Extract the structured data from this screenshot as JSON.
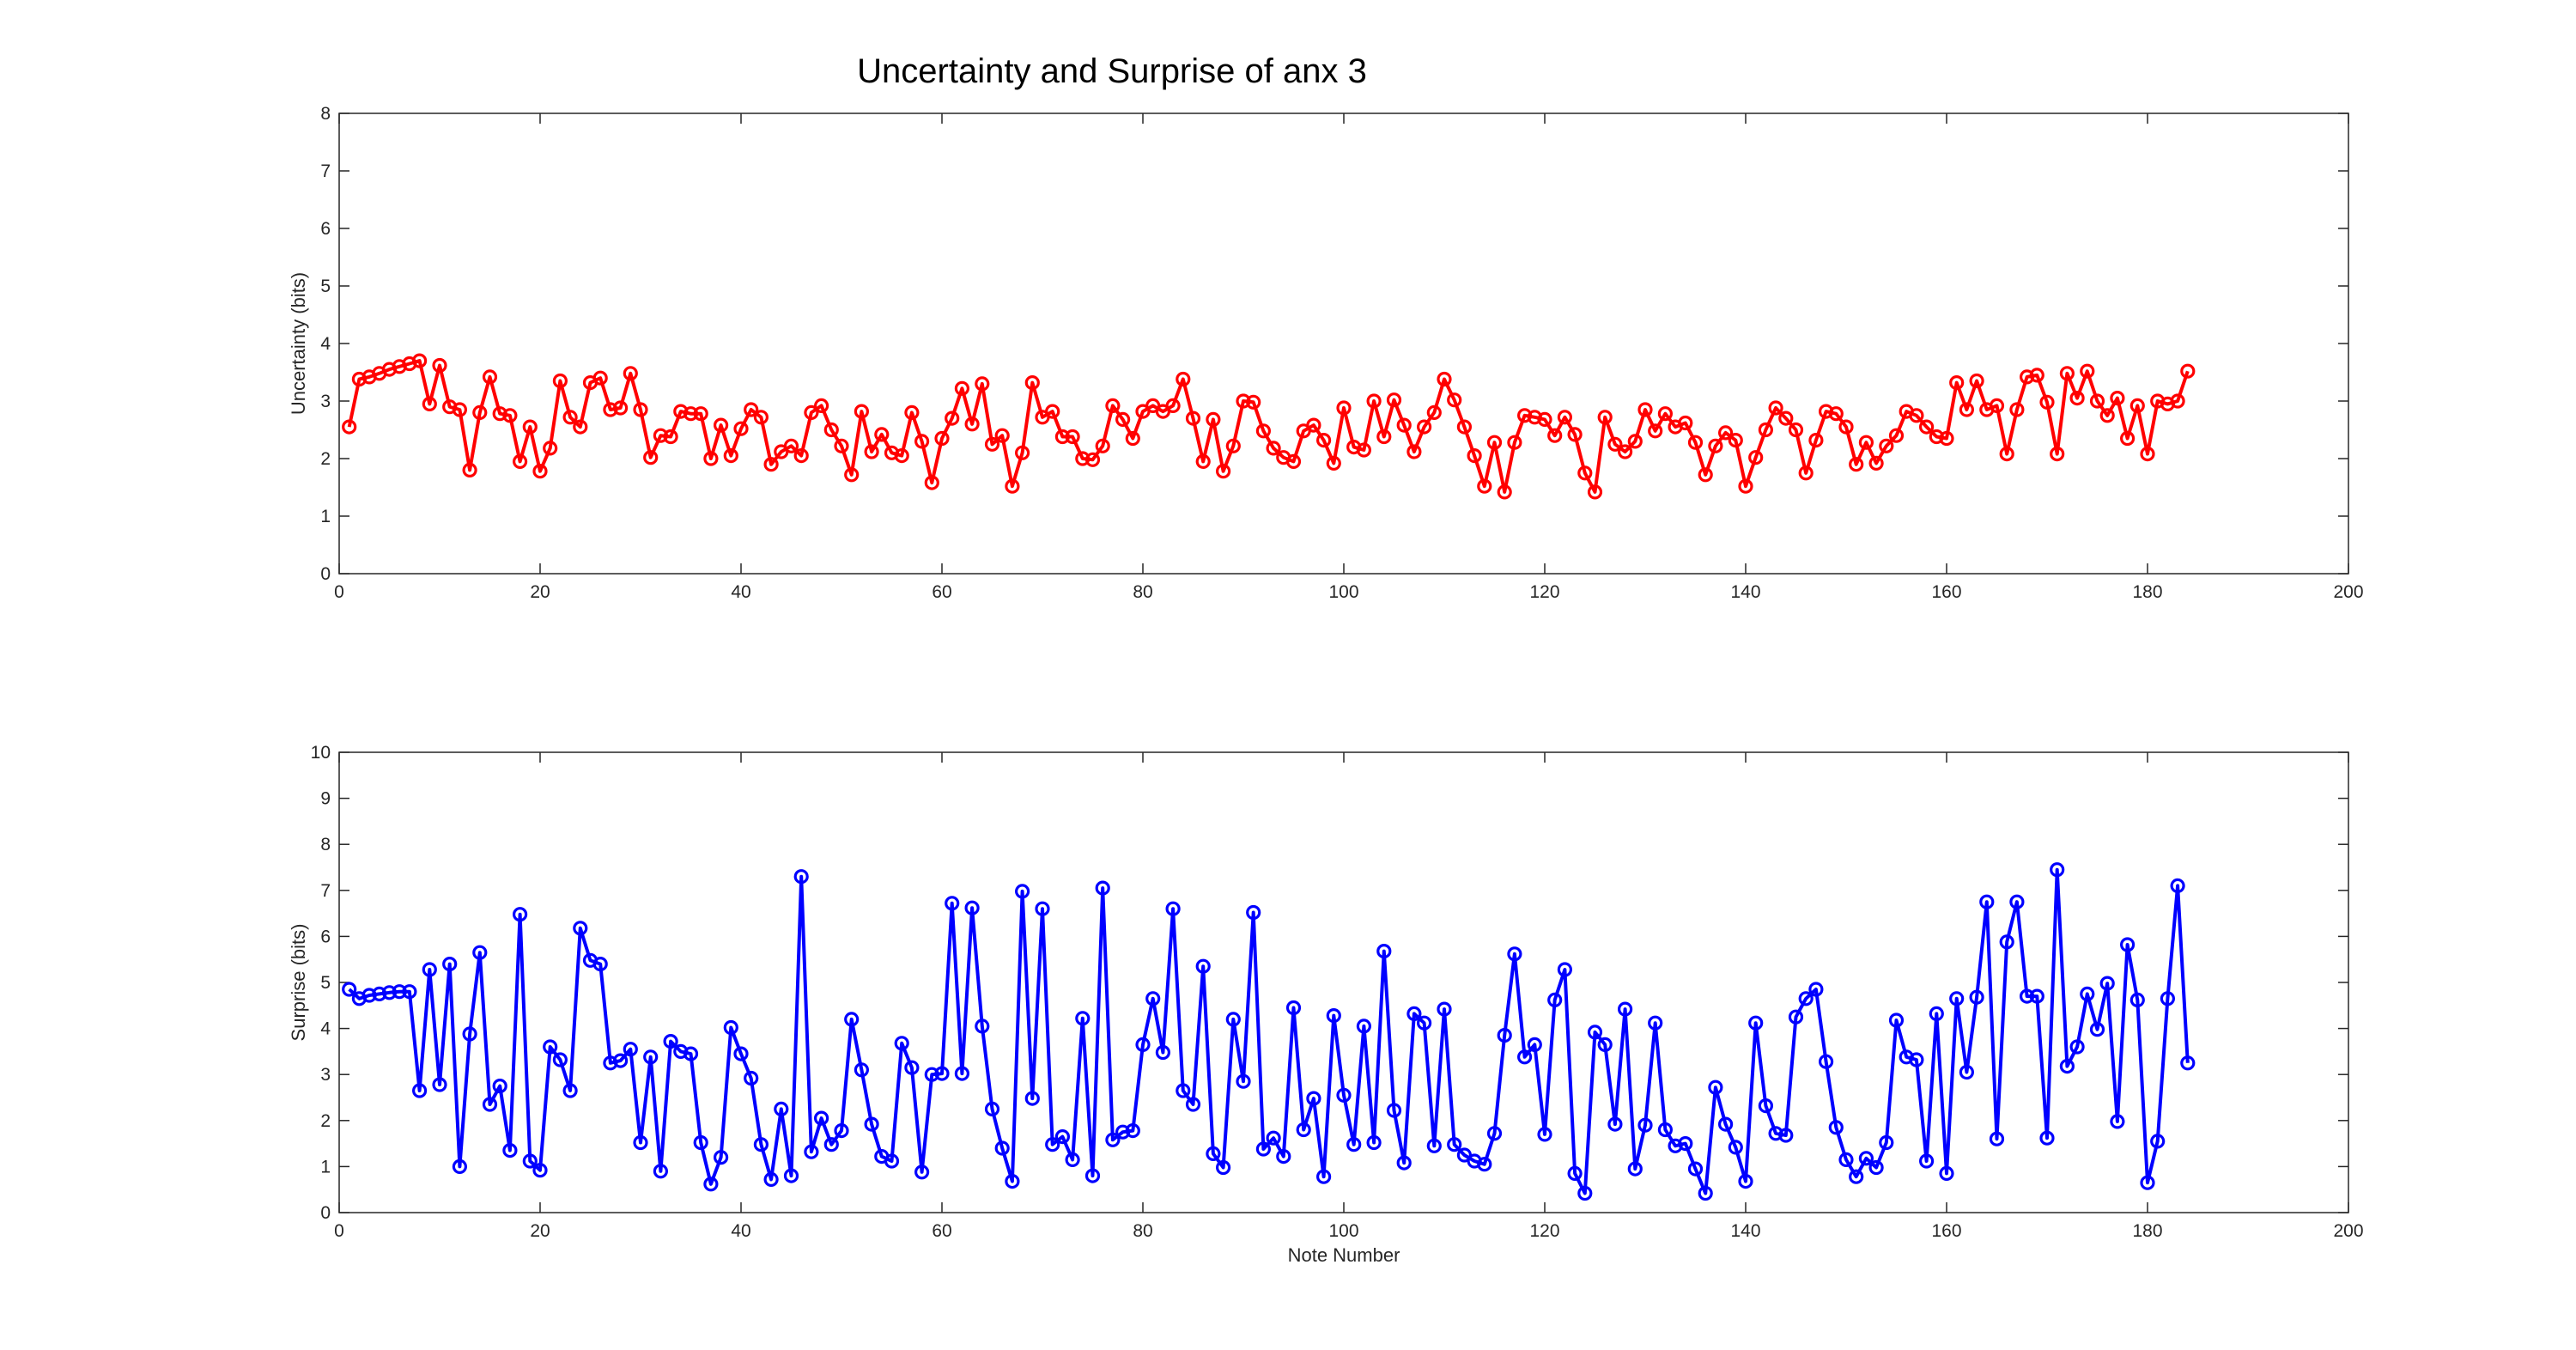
{
  "figure_title": "Uncertainty and Surprise of anx 3",
  "chart_data": [
    {
      "type": "line",
      "title": "Uncertainty and Surprise of anx 3",
      "xlabel": "",
      "ylabel": "Uncertainty (bits)",
      "xlim": [
        0,
        200
      ],
      "ylim": [
        0,
        8
      ],
      "xticks": [
        0,
        20,
        40,
        60,
        80,
        100,
        120,
        140,
        160,
        180,
        200
      ],
      "yticks": [
        0,
        1,
        2,
        3,
        4,
        5,
        6,
        7,
        8
      ],
      "marker": "circle",
      "color": "#ff0000",
      "grid": false,
      "series": [
        {
          "x_start": 1,
          "values": [
            2.55,
            3.38,
            3.42,
            3.48,
            3.55,
            3.6,
            3.65,
            3.7,
            2.95,
            3.62,
            2.9,
            2.85,
            1.8,
            2.8,
            3.42,
            2.78,
            2.75,
            1.95,
            2.55,
            1.78,
            2.18,
            3.35,
            2.72,
            2.55,
            3.32,
            3.4,
            2.85,
            2.88,
            3.48,
            2.85,
            2.02,
            2.4,
            2.38,
            2.82,
            2.78,
            2.78,
            2.0,
            2.58,
            2.05,
            2.52,
            2.85,
            2.72,
            1.9,
            2.12,
            2.22,
            2.05,
            2.8,
            2.92,
            2.5,
            2.22,
            1.72,
            2.82,
            2.12,
            2.42,
            2.1,
            2.05,
            2.8,
            2.3,
            1.58,
            2.35,
            2.7,
            3.22,
            2.6,
            3.3,
            2.25,
            2.4,
            1.52,
            2.1,
            3.32,
            2.72,
            2.82,
            2.38,
            2.38,
            2.0,
            1.98,
            2.22,
            2.92,
            2.68,
            2.35,
            2.82,
            2.92,
            2.82,
            2.92,
            3.38,
            2.7,
            1.95,
            2.68,
            1.78,
            2.22,
            3.0,
            2.98,
            2.48,
            2.18,
            2.02,
            1.95,
            2.48,
            2.58,
            2.32,
            1.92,
            2.88,
            2.2,
            2.15,
            3.0,
            2.38,
            3.02,
            2.58,
            2.12,
            2.55,
            2.8,
            3.38,
            3.02,
            2.55,
            2.05,
            1.52,
            2.28,
            1.42,
            2.28,
            2.75,
            2.72,
            2.68,
            2.4,
            2.72,
            2.42,
            1.75,
            1.42,
            2.72,
            2.25,
            2.12,
            2.3,
            2.85,
            2.48,
            2.78,
            2.55,
            2.62,
            2.28,
            1.72,
            2.22,
            2.45,
            2.32,
            1.52,
            2.02,
            2.5,
            2.88,
            2.7,
            2.5,
            1.75,
            2.32,
            2.82,
            2.78,
            2.55,
            1.9,
            2.28,
            1.92,
            2.22,
            2.4,
            2.82,
            2.75,
            2.55,
            2.38,
            2.35,
            3.32,
            2.85,
            3.35,
            2.85,
            2.92,
            2.08,
            2.85,
            3.42,
            3.45,
            2.98,
            2.08,
            3.48,
            3.05,
            3.52,
            3.0,
            2.75,
            3.05,
            2.35,
            2.92,
            2.08,
            3.0,
            2.95,
            3.0,
            3.52
          ]
        }
      ]
    },
    {
      "type": "line",
      "title": "",
      "xlabel": "Note Number",
      "ylabel": "Surprise (bits)",
      "xlim": [
        0,
        200
      ],
      "ylim": [
        0,
        10
      ],
      "xticks": [
        0,
        20,
        40,
        60,
        80,
        100,
        120,
        140,
        160,
        180,
        200
      ],
      "yticks": [
        0,
        1,
        2,
        3,
        4,
        5,
        6,
        7,
        8,
        9,
        10
      ],
      "marker": "circle",
      "color": "#0000ff",
      "grid": false,
      "series": [
        {
          "x_start": 1,
          "values": [
            4.85,
            4.65,
            4.72,
            4.75,
            4.78,
            4.8,
            4.8,
            2.65,
            5.28,
            2.78,
            5.4,
            1.0,
            3.88,
            5.65,
            2.35,
            2.75,
            1.35,
            6.48,
            1.12,
            0.92,
            3.6,
            3.32,
            2.65,
            6.18,
            5.48,
            5.4,
            3.25,
            3.3,
            3.55,
            1.52,
            3.38,
            0.9,
            3.72,
            3.5,
            3.45,
            1.52,
            0.62,
            1.2,
            4.02,
            3.45,
            2.92,
            1.48,
            0.72,
            2.25,
            0.8,
            7.3,
            1.32,
            2.05,
            1.48,
            1.78,
            4.2,
            3.1,
            1.92,
            1.22,
            1.12,
            3.68,
            3.15,
            0.88,
            3.0,
            3.02,
            6.72,
            3.02,
            6.62,
            4.05,
            2.25,
            1.4,
            0.68,
            6.98,
            2.48,
            6.6,
            1.48,
            1.65,
            1.15,
            4.22,
            0.8,
            7.05,
            1.58,
            1.75,
            1.78,
            3.65,
            4.65,
            3.48,
            6.6,
            2.65,
            2.35,
            5.35,
            1.28,
            0.98,
            4.2,
            2.85,
            6.52,
            1.38,
            1.62,
            1.22,
            4.45,
            1.8,
            2.48,
            0.78,
            4.28,
            2.55,
            1.48,
            4.05,
            1.52,
            5.68,
            2.22,
            1.08,
            4.32,
            4.12,
            1.45,
            4.42,
            1.48,
            1.25,
            1.12,
            1.05,
            1.72,
            3.85,
            5.62,
            3.38,
            3.65,
            1.7,
            4.62,
            5.28,
            0.85,
            0.42,
            3.92,
            3.65,
            1.92,
            4.42,
            0.95,
            1.9,
            4.12,
            1.8,
            1.45,
            1.5,
            0.95,
            0.42,
            2.72,
            1.92,
            1.42,
            0.68,
            4.12,
            2.32,
            1.72,
            1.68,
            4.25,
            4.65,
            4.85,
            3.28,
            1.85,
            1.15,
            0.78,
            1.18,
            0.98,
            1.52,
            4.18,
            3.38,
            3.32,
            1.12,
            4.32,
            0.85,
            4.65,
            3.05,
            4.68,
            6.75,
            1.6,
            5.88,
            6.75,
            4.7,
            4.7,
            1.62,
            7.45,
            3.18,
            3.6,
            4.75,
            3.98,
            4.98,
            1.98,
            5.82,
            4.62,
            0.65,
            1.55,
            4.65,
            7.1,
            3.25
          ]
        }
      ]
    }
  ]
}
